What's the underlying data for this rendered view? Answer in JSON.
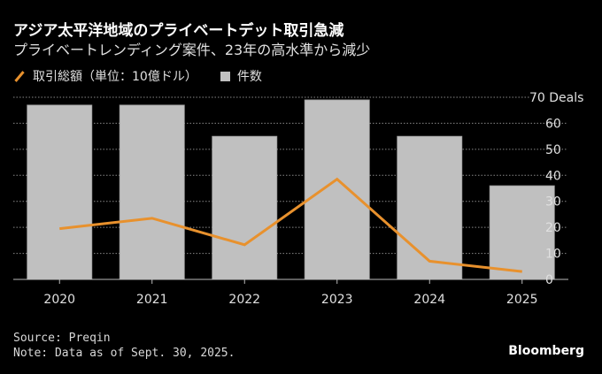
{
  "title": "アジア太平洋地域のプライベートデット取引急減",
  "subtitle": "プライベートレンディング案件、23年の高水準から減少",
  "legend": {
    "line_label": "取引総額（単位：10億ドル）",
    "bar_label": "件数"
  },
  "colors": {
    "bar": "#c0c0c0",
    "line": "#e8912d",
    "background": "#000000",
    "grid": "#888888"
  },
  "chart_data": {
    "type": "bar",
    "categories": [
      "2020",
      "2021",
      "2022",
      "2023",
      "2024",
      "2025"
    ],
    "series": [
      {
        "name": "件数",
        "type": "bar",
        "values": [
          67,
          67,
          55,
          69,
          55,
          36
        ]
      },
      {
        "name": "取引総額（単位：10億ドル）",
        "type": "line",
        "values": [
          19.5,
          23.5,
          13.3,
          38.5,
          7,
          3
        ]
      }
    ],
    "ylim": [
      0,
      70
    ],
    "yticks": [
      "0",
      "10",
      "20",
      "30",
      "40",
      "50",
      "60",
      "70 Deals"
    ],
    "ytick_values": [
      0,
      10,
      20,
      30,
      40,
      50,
      60,
      70
    ],
    "grid": true,
    "legend_position": "top-left"
  },
  "footer": {
    "source": "Source: Preqin",
    "note": "Note: Data as of Sept. 30, 2025.",
    "brand": "Bloomberg"
  }
}
